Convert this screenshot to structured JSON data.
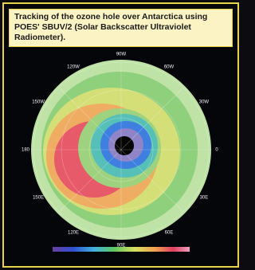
{
  "caption": "Tracking of the ozone hole over Antarctica using POES' SBUV/2 (Solar Backscatter Ultraviolet Radiometer).",
  "map": {
    "longitude_labels": [
      "90W",
      "60W",
      "30W",
      "0",
      "30E",
      "60E",
      "90E",
      "120E",
      "150E",
      "180",
      "150W",
      "120W"
    ]
  }
}
